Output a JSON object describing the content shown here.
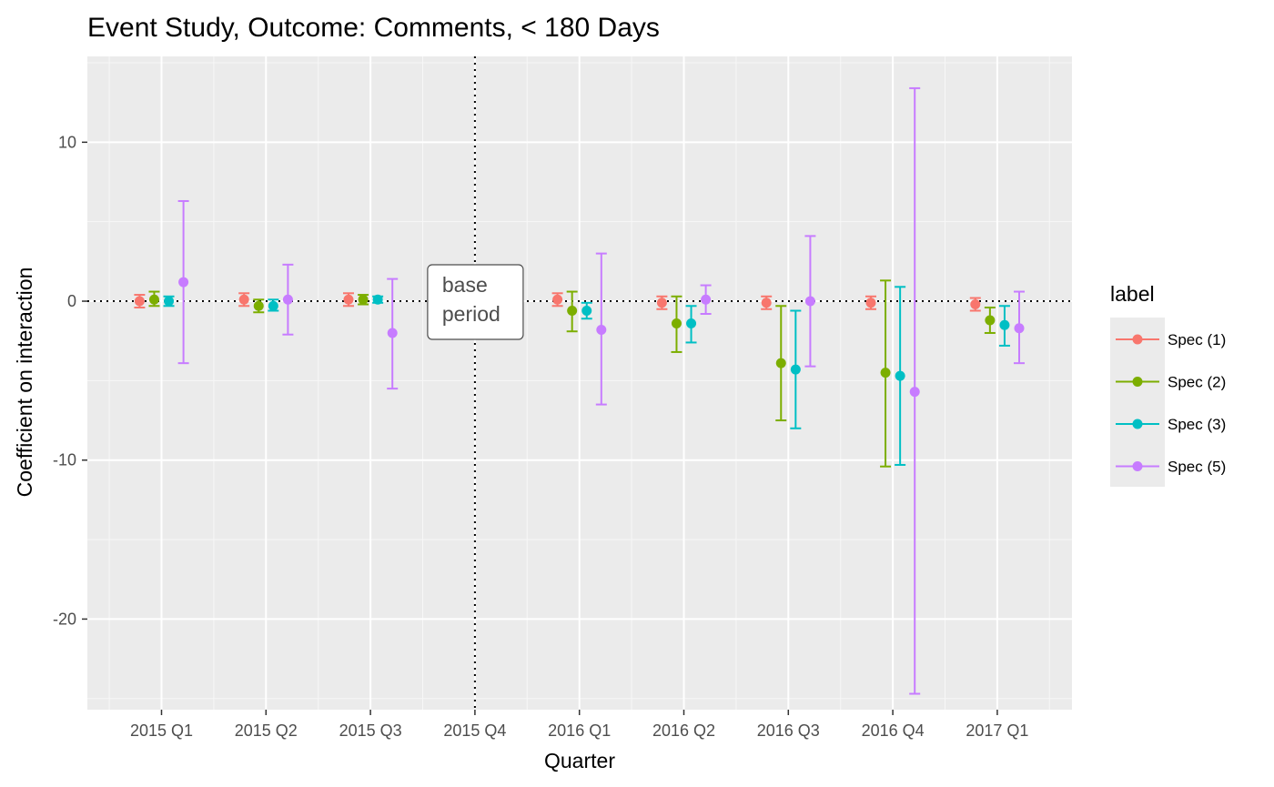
{
  "chart_data": {
    "type": "scatter",
    "title": "Event Study, Outcome: Comments, < 180 Days",
    "xlabel": "Quarter",
    "ylabel": "Coefficient on interaction",
    "categories": [
      "2015 Q1",
      "2015 Q2",
      "2015 Q3",
      "2015 Q4",
      "2016 Q1",
      "2016 Q2",
      "2016 Q3",
      "2016 Q4",
      "2017 Q1"
    ],
    "ylim": [
      -25.7,
      15.4
    ],
    "yticks": [
      -20,
      -10,
      0,
      10
    ],
    "grid": true,
    "reference_lines": {
      "horizontal_y": 0,
      "vertical_category": "2015 Q4"
    },
    "annotation": {
      "category": "2015 Q4",
      "y": 0,
      "lines": [
        "base",
        "period"
      ]
    },
    "legend": {
      "title": "label",
      "position": "right"
    },
    "series": [
      {
        "name": "Spec (1)",
        "color": "#F8766D",
        "points": [
          {
            "x": "2015 Q1",
            "y": 0.0,
            "lo": -0.4,
            "hi": 0.4
          },
          {
            "x": "2015 Q2",
            "y": 0.1,
            "lo": -0.3,
            "hi": 0.5
          },
          {
            "x": "2015 Q3",
            "y": 0.1,
            "lo": -0.3,
            "hi": 0.5
          },
          {
            "x": "2016 Q1",
            "y": 0.1,
            "lo": -0.3,
            "hi": 0.5
          },
          {
            "x": "2016 Q2",
            "y": -0.1,
            "lo": -0.5,
            "hi": 0.3
          },
          {
            "x": "2016 Q3",
            "y": -0.1,
            "lo": -0.5,
            "hi": 0.3
          },
          {
            "x": "2016 Q4",
            "y": -0.1,
            "lo": -0.5,
            "hi": 0.3
          },
          {
            "x": "2017 Q1",
            "y": -0.2,
            "lo": -0.6,
            "hi": 0.2
          }
        ]
      },
      {
        "name": "Spec (2)",
        "color": "#7CAE00",
        "points": [
          {
            "x": "2015 Q1",
            "y": 0.1,
            "lo": -0.3,
            "hi": 0.6
          },
          {
            "x": "2015 Q2",
            "y": -0.3,
            "lo": -0.7,
            "hi": 0.1
          },
          {
            "x": "2015 Q3",
            "y": 0.1,
            "lo": -0.2,
            "hi": 0.4
          },
          {
            "x": "2016 Q1",
            "y": -0.6,
            "lo": -1.9,
            "hi": 0.6
          },
          {
            "x": "2016 Q2",
            "y": -1.4,
            "lo": -3.2,
            "hi": 0.3
          },
          {
            "x": "2016 Q3",
            "y": -3.9,
            "lo": -7.5,
            "hi": -0.3
          },
          {
            "x": "2016 Q4",
            "y": -4.5,
            "lo": -10.4,
            "hi": 1.3
          },
          {
            "x": "2017 Q1",
            "y": -1.2,
            "lo": -2.0,
            "hi": -0.4
          }
        ]
      },
      {
        "name": "Spec (3)",
        "color": "#00BFC4",
        "points": [
          {
            "x": "2015 Q1",
            "y": 0.0,
            "lo": -0.3,
            "hi": 0.3
          },
          {
            "x": "2015 Q2",
            "y": -0.3,
            "lo": -0.6,
            "hi": 0.1
          },
          {
            "x": "2015 Q3",
            "y": 0.1,
            "lo": -0.1,
            "hi": 0.3
          },
          {
            "x": "2016 Q1",
            "y": -0.6,
            "lo": -1.1,
            "hi": -0.1
          },
          {
            "x": "2016 Q2",
            "y": -1.4,
            "lo": -2.6,
            "hi": -0.3
          },
          {
            "x": "2016 Q3",
            "y": -4.3,
            "lo": -8.0,
            "hi": -0.6
          },
          {
            "x": "2016 Q4",
            "y": -4.7,
            "lo": -10.3,
            "hi": 0.9
          },
          {
            "x": "2017 Q1",
            "y": -1.5,
            "lo": -2.8,
            "hi": -0.3
          }
        ]
      },
      {
        "name": "Spec (5)",
        "color": "#C77CFF",
        "points": [
          {
            "x": "2015 Q1",
            "y": 1.2,
            "lo": -3.9,
            "hi": 6.3
          },
          {
            "x": "2015 Q2",
            "y": 0.1,
            "lo": -2.1,
            "hi": 2.3
          },
          {
            "x": "2015 Q3",
            "y": -2.0,
            "lo": -5.5,
            "hi": 1.4
          },
          {
            "x": "2016 Q1",
            "y": -1.8,
            "lo": -6.5,
            "hi": 3.0
          },
          {
            "x": "2016 Q2",
            "y": 0.1,
            "lo": -0.8,
            "hi": 1.0
          },
          {
            "x": "2016 Q3",
            "y": 0.0,
            "lo": -4.1,
            "hi": 4.1
          },
          {
            "x": "2016 Q4",
            "y": -5.7,
            "lo": -24.7,
            "hi": 13.4
          },
          {
            "x": "2017 Q1",
            "y": -1.7,
            "lo": -3.9,
            "hi": 0.6
          }
        ]
      }
    ]
  }
}
